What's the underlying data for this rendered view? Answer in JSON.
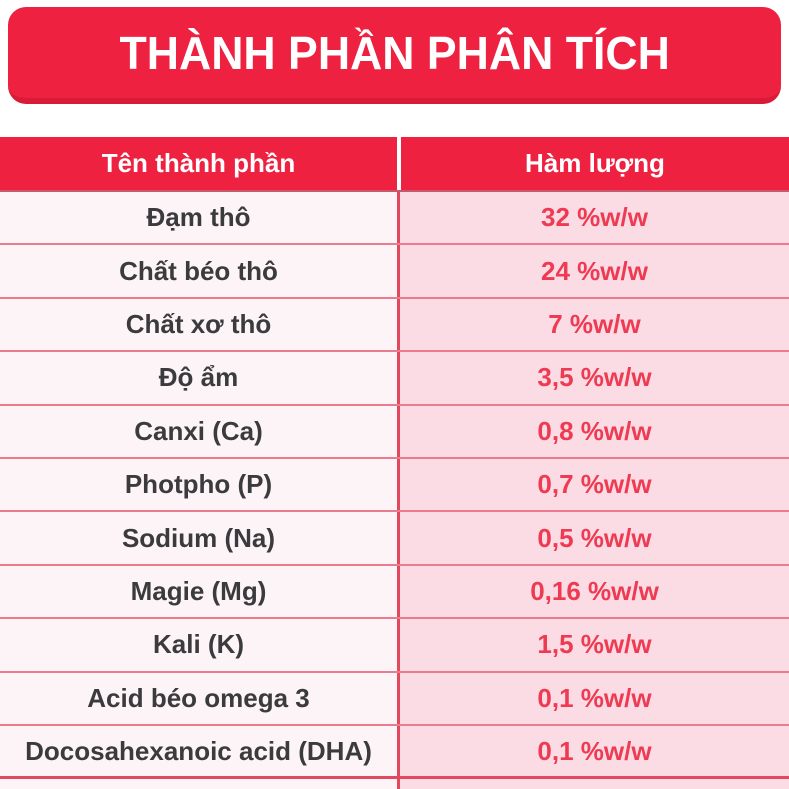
{
  "page": {
    "title": "THÀNH PHẦN PHÂN TÍCH"
  },
  "table": {
    "columns": [
      {
        "label": "Tên thành phần"
      },
      {
        "label": "Hàm lượng"
      }
    ],
    "rows": [
      {
        "name": "Đạm thô",
        "value": "32 %w/w"
      },
      {
        "name": "Chất béo thô",
        "value": "24 %w/w"
      },
      {
        "name": "Chất xơ thô",
        "value": "7 %w/w"
      },
      {
        "name": "Độ ẩm",
        "value": "3,5 %w/w"
      },
      {
        "name": "Canxi (Ca)",
        "value": "0,8 %w/w"
      },
      {
        "name": "Photpho (P)",
        "value": "0,7 %w/w"
      },
      {
        "name": "Sodium (Na)",
        "value": "0,5 %w/w"
      },
      {
        "name": "Magie (Mg)",
        "value": "0,16 %w/w"
      },
      {
        "name": "Kali (K)",
        "value": "1,5 %w/w"
      },
      {
        "name": "Acid béo omega 3",
        "value": "0,1 %w/w"
      },
      {
        "name": "Docosahexanoic acid (DHA)",
        "value": "0,1 %w/w"
      }
    ]
  },
  "colors": {
    "primary_red": "#EE2240",
    "banner_bottom_red": "#D81B36",
    "value_red": "#EE3A52",
    "name_text": "#3B3B3D",
    "row_left_bg": "#FDF4F7",
    "row_right_bg": "#FBDCE4",
    "separator_pink": "#EC7B90",
    "divider_red": "#E2495F",
    "header_text": "#FFFFFF"
  },
  "chart_data": {
    "type": "table",
    "title": "THÀNH PHẦN PHÂN TÍCH",
    "columns": [
      "Tên thành phần",
      "Hàm lượng"
    ],
    "rows": [
      [
        "Đạm thô",
        "32 %w/w"
      ],
      [
        "Chất béo thô",
        "24 %w/w"
      ],
      [
        "Chất xơ thô",
        "7 %w/w"
      ],
      [
        "Độ ẩm",
        "3,5 %w/w"
      ],
      [
        "Canxi (Ca)",
        "0,8 %w/w"
      ],
      [
        "Photpho (P)",
        "0,7 %w/w"
      ],
      [
        "Sodium (Na)",
        "0,5 %w/w"
      ],
      [
        "Magie (Mg)",
        "0,16 %w/w"
      ],
      [
        "Kali (K)",
        "1,5 %w/w"
      ],
      [
        "Acid béo omega 3",
        "0,1 %w/w"
      ],
      [
        "Docosahexanoic acid (DHA)",
        "0,1 %w/w"
      ]
    ],
    "values_numeric_percent_w_w": [
      32,
      24,
      7,
      3.5,
      0.8,
      0.7,
      0.5,
      0.16,
      1.5,
      0.1,
      0.1
    ],
    "layout_hints": {
      "header_bg": "#EE2240",
      "striped": false,
      "value_column_highlighted": true
    }
  }
}
